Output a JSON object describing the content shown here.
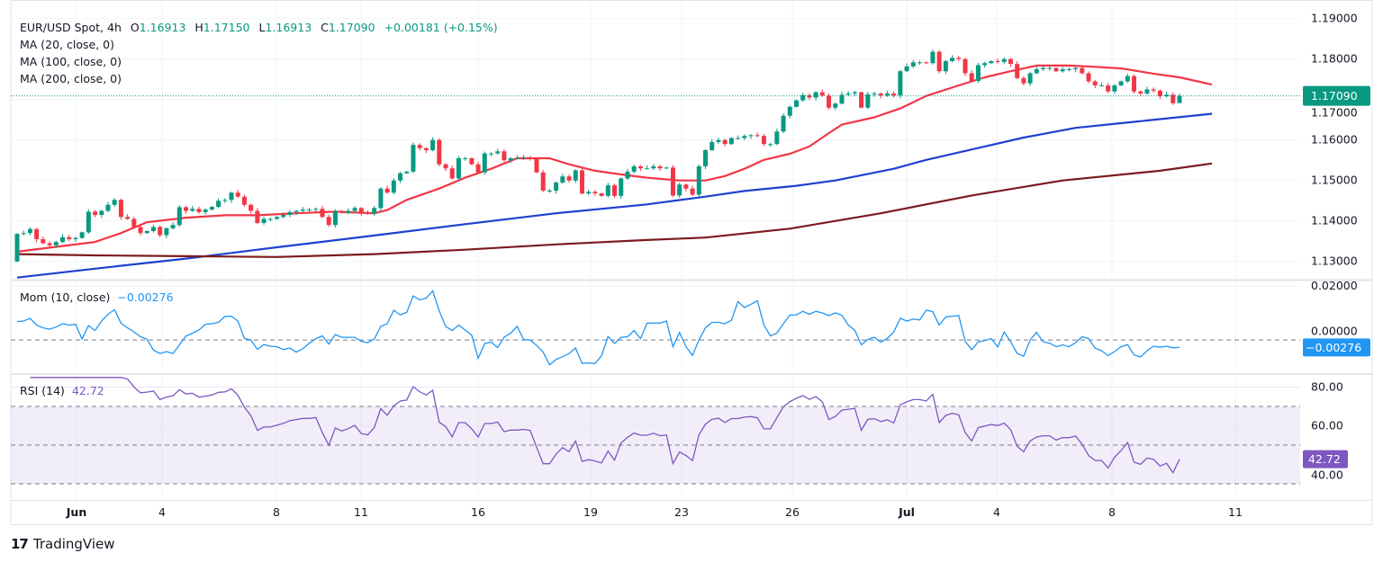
{
  "header": {
    "symbol": "EUR/USD Spot, 4h",
    "open_label": "O",
    "open": "1.16913",
    "high_label": "H",
    "high": "1.17150",
    "low_label": "L",
    "low": "1.16913",
    "close_label": "C",
    "close": "1.17090",
    "change": "+0.00181 (+0.15%)"
  },
  "indicators": {
    "ma20": "MA (20, close, 0)",
    "ma100": "MA (100, close, 0)",
    "ma200": "MA (200, close, 0)",
    "mom_title": "Mom (10, close)",
    "mom_value": "−0.00276",
    "rsi_title": "RSI (14)",
    "rsi_value": "42.72"
  },
  "footer": {
    "brand": "TradingView"
  },
  "colors": {
    "up": "#089981",
    "down": "#f23645",
    "ma20": "#f23645",
    "ma100": "#1e40d0",
    "ma200": "#7b1a1e",
    "mom": "#2196f3",
    "rsi": "#7e57c2"
  },
  "chart_data": [
    {
      "type": "candlestick",
      "title": "EUR/USD Spot, 4h",
      "first_open": 1.13,
      "close": [
        1.1368,
        1.137,
        1.138,
        1.1355,
        1.1345,
        1.134,
        1.1348,
        1.136,
        1.1355,
        1.1358,
        1.1372,
        1.1423,
        1.1415,
        1.1425,
        1.144,
        1.1452,
        1.141,
        1.1405,
        1.1385,
        1.137,
        1.1375,
        1.1385,
        1.1365,
        1.1382,
        1.139,
        1.1434,
        1.1425,
        1.143,
        1.1422,
        1.1428,
        1.1435,
        1.145,
        1.1452,
        1.147,
        1.146,
        1.144,
        1.1425,
        1.1395,
        1.1405,
        1.1405,
        1.141,
        1.1415,
        1.1422,
        1.1425,
        1.1428,
        1.1428,
        1.143,
        1.141,
        1.139,
        1.1425,
        1.142,
        1.1425,
        1.1432,
        1.142,
        1.1418,
        1.1432,
        1.148,
        1.147,
        1.15,
        1.1518,
        1.1522,
        1.1588,
        1.158,
        1.1575,
        1.16,
        1.154,
        1.153,
        1.1505,
        1.1555,
        1.1555,
        1.154,
        1.152,
        1.1567,
        1.1567,
        1.1572,
        1.155,
        1.1555,
        1.1555,
        1.1557,
        1.1555,
        1.152,
        1.1475,
        1.1475,
        1.1495,
        1.151,
        1.15,
        1.1525,
        1.1468,
        1.1472,
        1.1468,
        1.1462,
        1.1488,
        1.1462,
        1.1505,
        1.1522,
        1.1535,
        1.153,
        1.153,
        1.1535,
        1.153,
        1.1532,
        1.1463,
        1.149,
        1.148,
        1.1465,
        1.1535,
        1.1575,
        1.1595,
        1.16,
        1.159,
        1.1605,
        1.1605,
        1.161,
        1.1612,
        1.161,
        1.159,
        1.159,
        1.1621,
        1.166,
        1.1682,
        1.1698,
        1.1711,
        1.1705,
        1.1718,
        1.171,
        1.168,
        1.169,
        1.1712,
        1.1715,
        1.1718,
        1.168,
        1.1713,
        1.1715,
        1.171,
        1.1715,
        1.171,
        1.177,
        1.1782,
        1.1792,
        1.1792,
        1.179,
        1.1818,
        1.177,
        1.1795,
        1.1803,
        1.18,
        1.1765,
        1.1746,
        1.1785,
        1.179,
        1.1795,
        1.1793,
        1.18,
        1.1788,
        1.1753,
        1.174,
        1.1765,
        1.1775,
        1.1778,
        1.1778,
        1.177,
        1.1775,
        1.1775,
        1.1778,
        1.1765,
        1.1745,
        1.1735,
        1.1735,
        1.172,
        1.1735,
        1.1745,
        1.1758,
        1.172,
        1.1715,
        1.1725,
        1.1722,
        1.1708,
        1.1712,
        1.1691,
        1.1709
      ],
      "last_candle": {
        "open": 1.16913,
        "high": 1.1715,
        "low": 1.16913,
        "close": 1.1709
      },
      "ma_series": [
        {
          "name": "MA (20, close, 0)",
          "points": [
            [
              0,
              1.1324
            ],
            [
              12,
              1.1348
            ],
            [
              16,
              1.137
            ],
            [
              20,
              1.1397
            ],
            [
              26,
              1.1408
            ],
            [
              32,
              1.1414
            ],
            [
              37,
              1.1414
            ],
            [
              43,
              1.1419
            ],
            [
              49,
              1.1423
            ],
            [
              55,
              1.1419
            ],
            [
              57,
              1.1427
            ],
            [
              60,
              1.1452
            ],
            [
              65,
              1.148
            ],
            [
              69,
              1.1507
            ],
            [
              73,
              1.1529
            ],
            [
              77,
              1.1555
            ],
            [
              82,
              1.1555
            ],
            [
              85,
              1.154
            ],
            [
              89,
              1.1524
            ],
            [
              93,
              1.1515
            ],
            [
              97,
              1.1507
            ],
            [
              102,
              1.15
            ],
            [
              106,
              1.15
            ],
            [
              109,
              1.1511
            ],
            [
              112,
              1.1529
            ],
            [
              115,
              1.1551
            ],
            [
              119,
              1.1566
            ],
            [
              122,
              1.1584
            ],
            [
              125,
              1.1617
            ],
            [
              127,
              1.1638
            ],
            [
              132,
              1.1656
            ],
            [
              136,
              1.1678
            ],
            [
              140,
              1.1709
            ],
            [
              145,
              1.1735
            ],
            [
              149,
              1.1755
            ],
            [
              153,
              1.177
            ],
            [
              157,
              1.1784
            ],
            [
              162,
              1.1784
            ],
            [
              166,
              1.1781
            ],
            [
              170,
              1.1777
            ],
            [
              175,
              1.1764
            ],
            [
              179,
              1.1755
            ],
            [
              184,
              1.1737
            ]
          ]
        },
        {
          "name": "MA (100, close, 0)",
          "points": [
            [
              0,
              1.126
            ],
            [
              12,
              1.1282
            ],
            [
              26,
              1.1307
            ],
            [
              40,
              1.1335
            ],
            [
              55,
              1.1364
            ],
            [
              69,
              1.1392
            ],
            [
              83,
              1.1419
            ],
            [
              97,
              1.1441
            ],
            [
              106,
              1.146
            ],
            [
              112,
              1.1474
            ],
            [
              120,
              1.1487
            ],
            [
              126,
              1.15
            ],
            [
              135,
              1.1529
            ],
            [
              140,
              1.1551
            ],
            [
              149,
              1.1584
            ],
            [
              155,
              1.1606
            ],
            [
              163,
              1.163
            ],
            [
              172,
              1.1645
            ],
            [
              184,
              1.1665
            ]
          ]
        },
        {
          "name": "MA (200, close, 0)",
          "points": [
            [
              0,
              1.1318
            ],
            [
              12,
              1.1315
            ],
            [
              26,
              1.1313
            ],
            [
              40,
              1.1311
            ],
            [
              55,
              1.1318
            ],
            [
              69,
              1.1329
            ],
            [
              83,
              1.1342
            ],
            [
              97,
              1.1353
            ],
            [
              106,
              1.1359
            ],
            [
              119,
              1.1381
            ],
            [
              133,
              1.1419
            ],
            [
              147,
              1.1463
            ],
            [
              161,
              1.15
            ],
            [
              176,
              1.1524
            ],
            [
              184,
              1.1542
            ]
          ]
        }
      ],
      "y_ticks": [
        "1.19000",
        "1.18000",
        "1.17000",
        "1.16000",
        "1.15000",
        "1.14000",
        "1.13000"
      ],
      "ylim": [
        1.1255,
        1.1946
      ],
      "current_price_label": "1.17090",
      "x_ticks": [
        "Jun",
        "4",
        "8",
        "11",
        "16",
        "19",
        "23",
        "26",
        "Jul",
        "4",
        "8",
        "11"
      ],
      "grid": true
    },
    {
      "type": "line",
      "title": "Mom (10, close)",
      "last_value": -0.00276,
      "last_label": "−0.00276",
      "y_ticks": [
        "0.02000",
        "0.00000"
      ],
      "ylim": [
        -0.0123,
        0.022
      ]
    },
    {
      "type": "line",
      "title": "RSI (14)",
      "last_value": 42.72,
      "last_label": "42.72",
      "y_ticks": [
        "80.00",
        "60.00",
        "40.00"
      ],
      "bands": [
        30,
        50,
        70
      ],
      "ylim": [
        21.6,
        86.3
      ]
    }
  ]
}
